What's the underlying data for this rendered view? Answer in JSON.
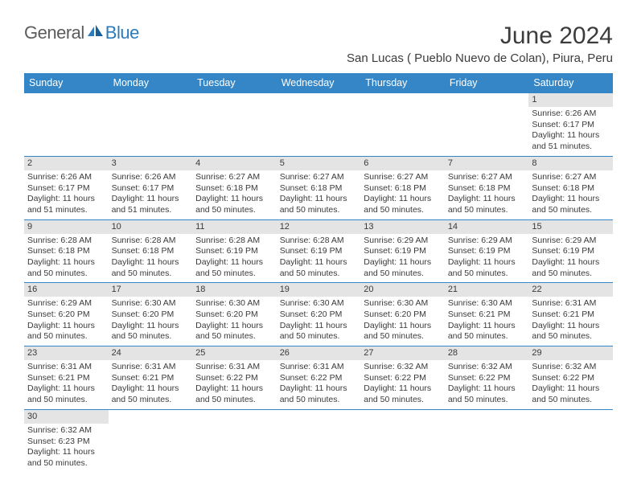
{
  "brand": {
    "part1": "General",
    "part2": "Blue"
  },
  "title": "June 2024",
  "location": "San Lucas ( Pueblo Nuevo de Colan), Piura, Peru",
  "colors": {
    "header_bg": "#3486c7",
    "header_text": "#ffffff",
    "daynum_bg": "#e4e4e4",
    "rule": "#3486c7",
    "body_text": "#3a3a3a",
    "logo_gray": "#5c5c5c",
    "logo_blue": "#2b7bbd"
  },
  "weekdays": [
    "Sunday",
    "Monday",
    "Tuesday",
    "Wednesday",
    "Thursday",
    "Friday",
    "Saturday"
  ],
  "weeks": [
    [
      null,
      null,
      null,
      null,
      null,
      null,
      {
        "n": "1",
        "sr": "6:26 AM",
        "ss": "6:17 PM",
        "dl": "11 hours and 51 minutes."
      }
    ],
    [
      {
        "n": "2",
        "sr": "6:26 AM",
        "ss": "6:17 PM",
        "dl": "11 hours and 51 minutes."
      },
      {
        "n": "3",
        "sr": "6:26 AM",
        "ss": "6:17 PM",
        "dl": "11 hours and 51 minutes."
      },
      {
        "n": "4",
        "sr": "6:27 AM",
        "ss": "6:18 PM",
        "dl": "11 hours and 50 minutes."
      },
      {
        "n": "5",
        "sr": "6:27 AM",
        "ss": "6:18 PM",
        "dl": "11 hours and 50 minutes."
      },
      {
        "n": "6",
        "sr": "6:27 AM",
        "ss": "6:18 PM",
        "dl": "11 hours and 50 minutes."
      },
      {
        "n": "7",
        "sr": "6:27 AM",
        "ss": "6:18 PM",
        "dl": "11 hours and 50 minutes."
      },
      {
        "n": "8",
        "sr": "6:27 AM",
        "ss": "6:18 PM",
        "dl": "11 hours and 50 minutes."
      }
    ],
    [
      {
        "n": "9",
        "sr": "6:28 AM",
        "ss": "6:18 PM",
        "dl": "11 hours and 50 minutes."
      },
      {
        "n": "10",
        "sr": "6:28 AM",
        "ss": "6:18 PM",
        "dl": "11 hours and 50 minutes."
      },
      {
        "n": "11",
        "sr": "6:28 AM",
        "ss": "6:19 PM",
        "dl": "11 hours and 50 minutes."
      },
      {
        "n": "12",
        "sr": "6:28 AM",
        "ss": "6:19 PM",
        "dl": "11 hours and 50 minutes."
      },
      {
        "n": "13",
        "sr": "6:29 AM",
        "ss": "6:19 PM",
        "dl": "11 hours and 50 minutes."
      },
      {
        "n": "14",
        "sr": "6:29 AM",
        "ss": "6:19 PM",
        "dl": "11 hours and 50 minutes."
      },
      {
        "n": "15",
        "sr": "6:29 AM",
        "ss": "6:19 PM",
        "dl": "11 hours and 50 minutes."
      }
    ],
    [
      {
        "n": "16",
        "sr": "6:29 AM",
        "ss": "6:20 PM",
        "dl": "11 hours and 50 minutes."
      },
      {
        "n": "17",
        "sr": "6:30 AM",
        "ss": "6:20 PM",
        "dl": "11 hours and 50 minutes."
      },
      {
        "n": "18",
        "sr": "6:30 AM",
        "ss": "6:20 PM",
        "dl": "11 hours and 50 minutes."
      },
      {
        "n": "19",
        "sr": "6:30 AM",
        "ss": "6:20 PM",
        "dl": "11 hours and 50 minutes."
      },
      {
        "n": "20",
        "sr": "6:30 AM",
        "ss": "6:20 PM",
        "dl": "11 hours and 50 minutes."
      },
      {
        "n": "21",
        "sr": "6:30 AM",
        "ss": "6:21 PM",
        "dl": "11 hours and 50 minutes."
      },
      {
        "n": "22",
        "sr": "6:31 AM",
        "ss": "6:21 PM",
        "dl": "11 hours and 50 minutes."
      }
    ],
    [
      {
        "n": "23",
        "sr": "6:31 AM",
        "ss": "6:21 PM",
        "dl": "11 hours and 50 minutes."
      },
      {
        "n": "24",
        "sr": "6:31 AM",
        "ss": "6:21 PM",
        "dl": "11 hours and 50 minutes."
      },
      {
        "n": "25",
        "sr": "6:31 AM",
        "ss": "6:22 PM",
        "dl": "11 hours and 50 minutes."
      },
      {
        "n": "26",
        "sr": "6:31 AM",
        "ss": "6:22 PM",
        "dl": "11 hours and 50 minutes."
      },
      {
        "n": "27",
        "sr": "6:32 AM",
        "ss": "6:22 PM",
        "dl": "11 hours and 50 minutes."
      },
      {
        "n": "28",
        "sr": "6:32 AM",
        "ss": "6:22 PM",
        "dl": "11 hours and 50 minutes."
      },
      {
        "n": "29",
        "sr": "6:32 AM",
        "ss": "6:22 PM",
        "dl": "11 hours and 50 minutes."
      }
    ],
    [
      {
        "n": "30",
        "sr": "6:32 AM",
        "ss": "6:23 PM",
        "dl": "11 hours and 50 minutes."
      },
      null,
      null,
      null,
      null,
      null,
      null
    ]
  ],
  "labels": {
    "sunrise": "Sunrise:",
    "sunset": "Sunset:",
    "daylight": "Daylight:"
  }
}
